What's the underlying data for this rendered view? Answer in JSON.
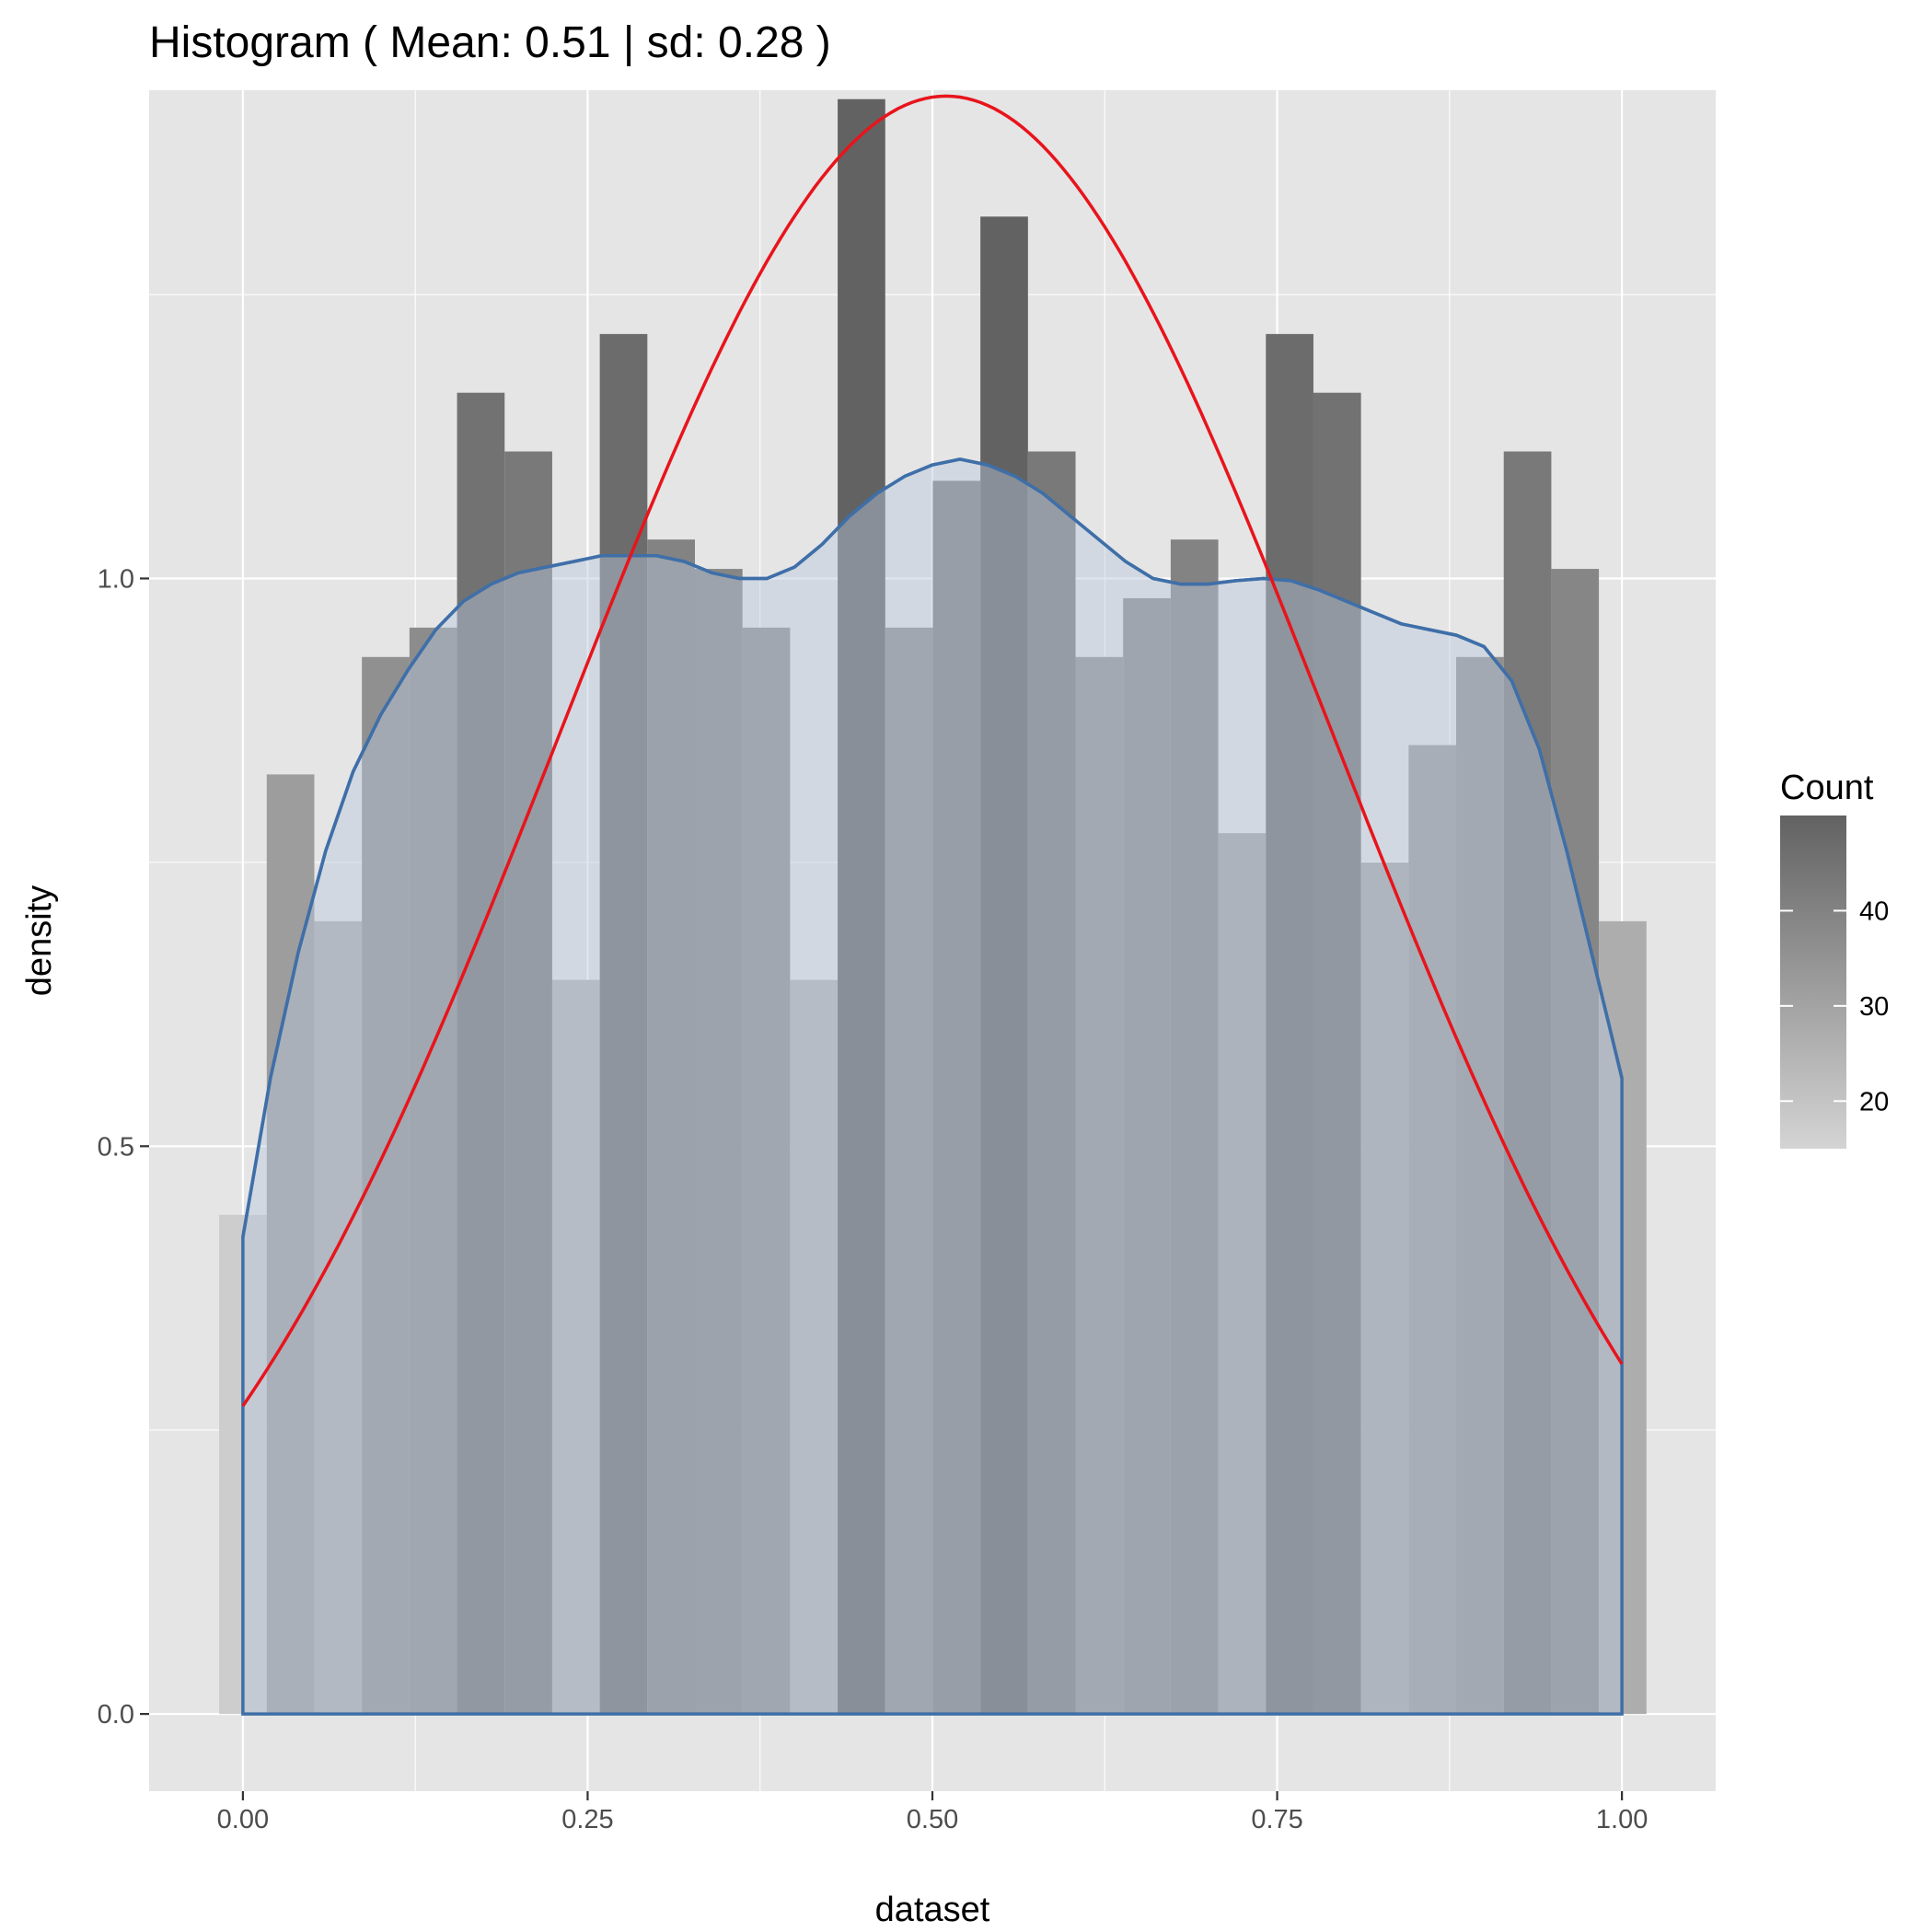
{
  "chart_data": {
    "type": "bar",
    "title": "Histogram ( Mean: 0.51 | sd: 0.28 )",
    "xlabel": "dataset",
    "ylabel": "density",
    "xlim": [
      -0.068,
      1.068
    ],
    "ylim": [
      -0.068,
      1.43
    ],
    "x_ticks": [
      0.0,
      0.25,
      0.5,
      0.75,
      1.0
    ],
    "x_tick_labels": [
      "0.00",
      "0.25",
      "0.50",
      "0.75",
      "1.00"
    ],
    "y_ticks": [
      0.0,
      0.5,
      1.0
    ],
    "y_tick_labels": [
      "0.0",
      "0.5",
      "1.0"
    ],
    "grid": true,
    "bins": {
      "start": -0.0172,
      "width": 0.0345,
      "counts": [
        17,
        32,
        27,
        36,
        37,
        45,
        43,
        25,
        47,
        40,
        39,
        37,
        25,
        55,
        37,
        42,
        51,
        43,
        36,
        38,
        40,
        30,
        47,
        45,
        29,
        33,
        36,
        43,
        39,
        27
      ]
    },
    "density_curve": {
      "name": "kernel density",
      "x": [
        0.0,
        0.02,
        0.04,
        0.06,
        0.08,
        0.1,
        0.12,
        0.14,
        0.16,
        0.18,
        0.2,
        0.22,
        0.24,
        0.26,
        0.28,
        0.3,
        0.32,
        0.34,
        0.36,
        0.38,
        0.4,
        0.42,
        0.44,
        0.46,
        0.48,
        0.5,
        0.52,
        0.54,
        0.56,
        0.58,
        0.6,
        0.62,
        0.64,
        0.66,
        0.68,
        0.7,
        0.72,
        0.74,
        0.76,
        0.78,
        0.8,
        0.82,
        0.84,
        0.86,
        0.88,
        0.9,
        0.92,
        0.94,
        0.96,
        0.98,
        1.0
      ],
      "y": [
        0.42,
        0.56,
        0.67,
        0.76,
        0.83,
        0.88,
        0.92,
        0.955,
        0.98,
        0.995,
        1.005,
        1.01,
        1.015,
        1.02,
        1.02,
        1.02,
        1.015,
        1.005,
        1.0,
        1.0,
        1.01,
        1.03,
        1.055,
        1.075,
        1.09,
        1.1,
        1.105,
        1.1,
        1.09,
        1.075,
        1.055,
        1.035,
        1.015,
        1.0,
        0.995,
        0.995,
        0.998,
        1.0,
        0.998,
        0.99,
        0.98,
        0.97,
        0.96,
        0.955,
        0.95,
        0.94,
        0.91,
        0.85,
        0.76,
        0.66,
        0.56
      ]
    },
    "normal_curve": {
      "name": "normal",
      "mean": 0.51,
      "sd": 0.28,
      "x_range": [
        0.0,
        1.0
      ]
    },
    "legend": {
      "title": "Count",
      "placement": "right",
      "gradient": true,
      "range": [
        15,
        50
      ],
      "ticks": [
        20,
        30,
        40
      ],
      "tick_labels": [
        "20",
        "30",
        "40"
      ],
      "low_color": "#d4d4d4",
      "high_color": "#626262"
    },
    "colors": {
      "panel_background": "#e5e5e5",
      "grid": "#ffffff",
      "density_line": "#3f6fa8",
      "density_fill": "#b8c8dc",
      "normal_line": "#e8141c"
    }
  }
}
